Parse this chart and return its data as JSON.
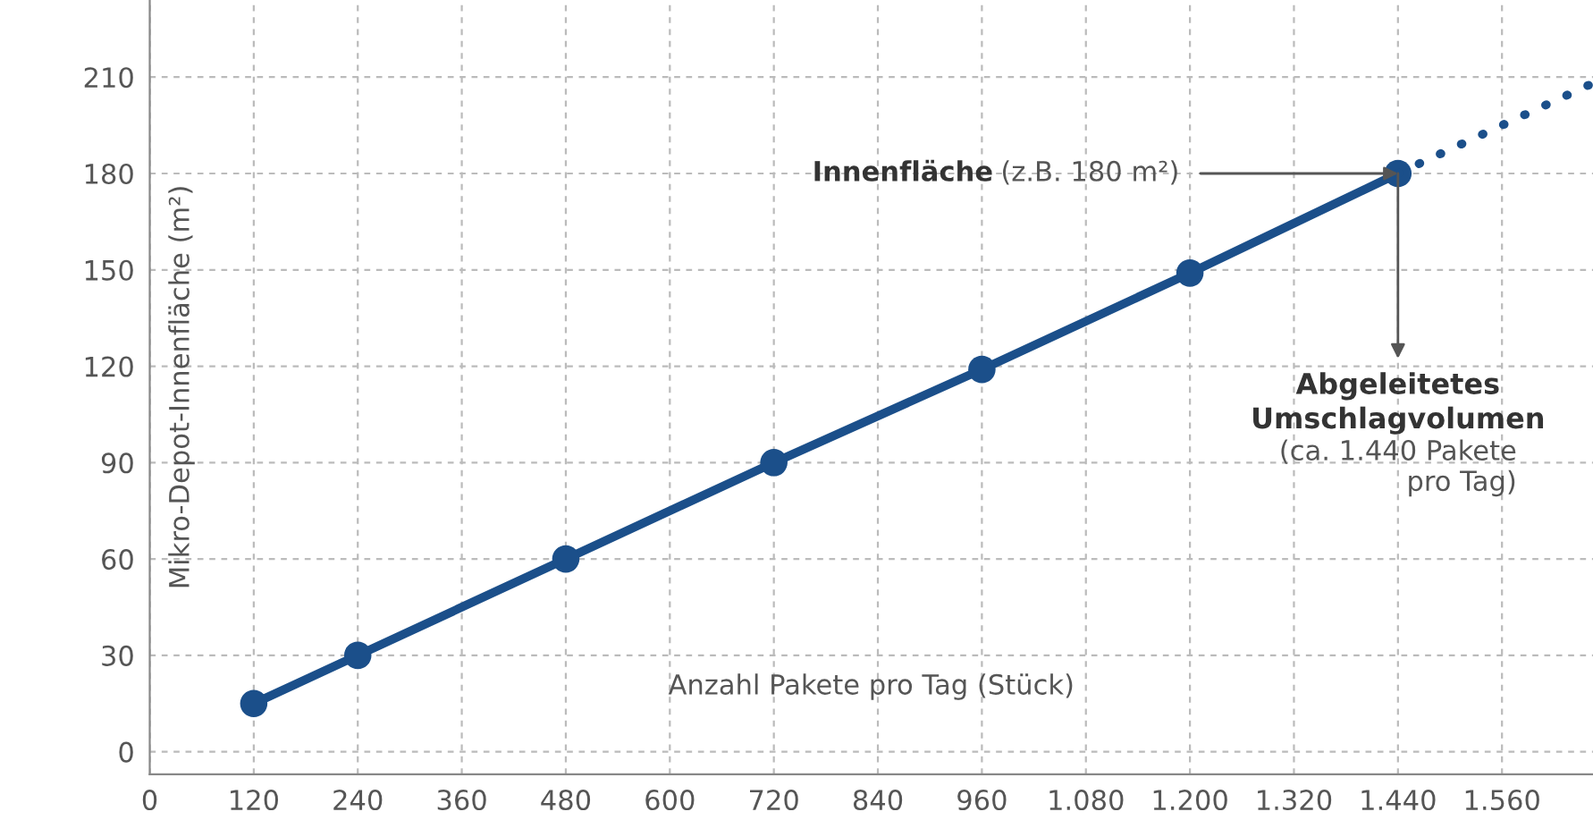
{
  "chart_data": {
    "type": "line",
    "xlabel": "Anzahl Pakete pro Tag (Stück)",
    "ylabel": "Mikro-Depot-Innenfläche (m²)",
    "series": [
      {
        "color": "#1b4f8a",
        "x": [
          120,
          240,
          480,
          720,
          960,
          1200,
          1440
        ],
        "values": [
          15,
          30,
          60,
          90,
          119,
          149,
          180
        ],
        "marker": "circle",
        "line_style": "solid"
      },
      {
        "color": "#1b4f8a",
        "x": [
          1440,
          1660
        ],
        "values": [
          180,
          207.5
        ],
        "marker": "none",
        "line_style": "dotted"
      }
    ],
    "xlim": [
      0,
      1665
    ],
    "ylim": [
      -7,
      234
    ],
    "xticks": [
      0,
      120,
      240,
      360,
      480,
      600,
      720,
      840,
      960,
      {
        "value": 1080,
        "label": "1.080"
      },
      {
        "value": 1200,
        "label": "1.200"
      },
      {
        "value": 1320,
        "label": "1.320"
      },
      {
        "value": 1440,
        "label": "1.440"
      },
      {
        "value": 1560,
        "label": "1.560"
      }
    ],
    "yticks": [
      0,
      30,
      60,
      90,
      120,
      150,
      180,
      210
    ],
    "grid": true,
    "annotations": [
      "Innenfläche",
      {
        "text": "(z.B. 180 m²)",
        "x": 1440,
        "y": 180
      },
      {
        "text": "Abgeleitetes\nUmschlagvolumen",
        "x": 1440,
        "y": 180
      },
      "(ca. 1.440 Pakete\npro Tag)"
    ]
  }
}
